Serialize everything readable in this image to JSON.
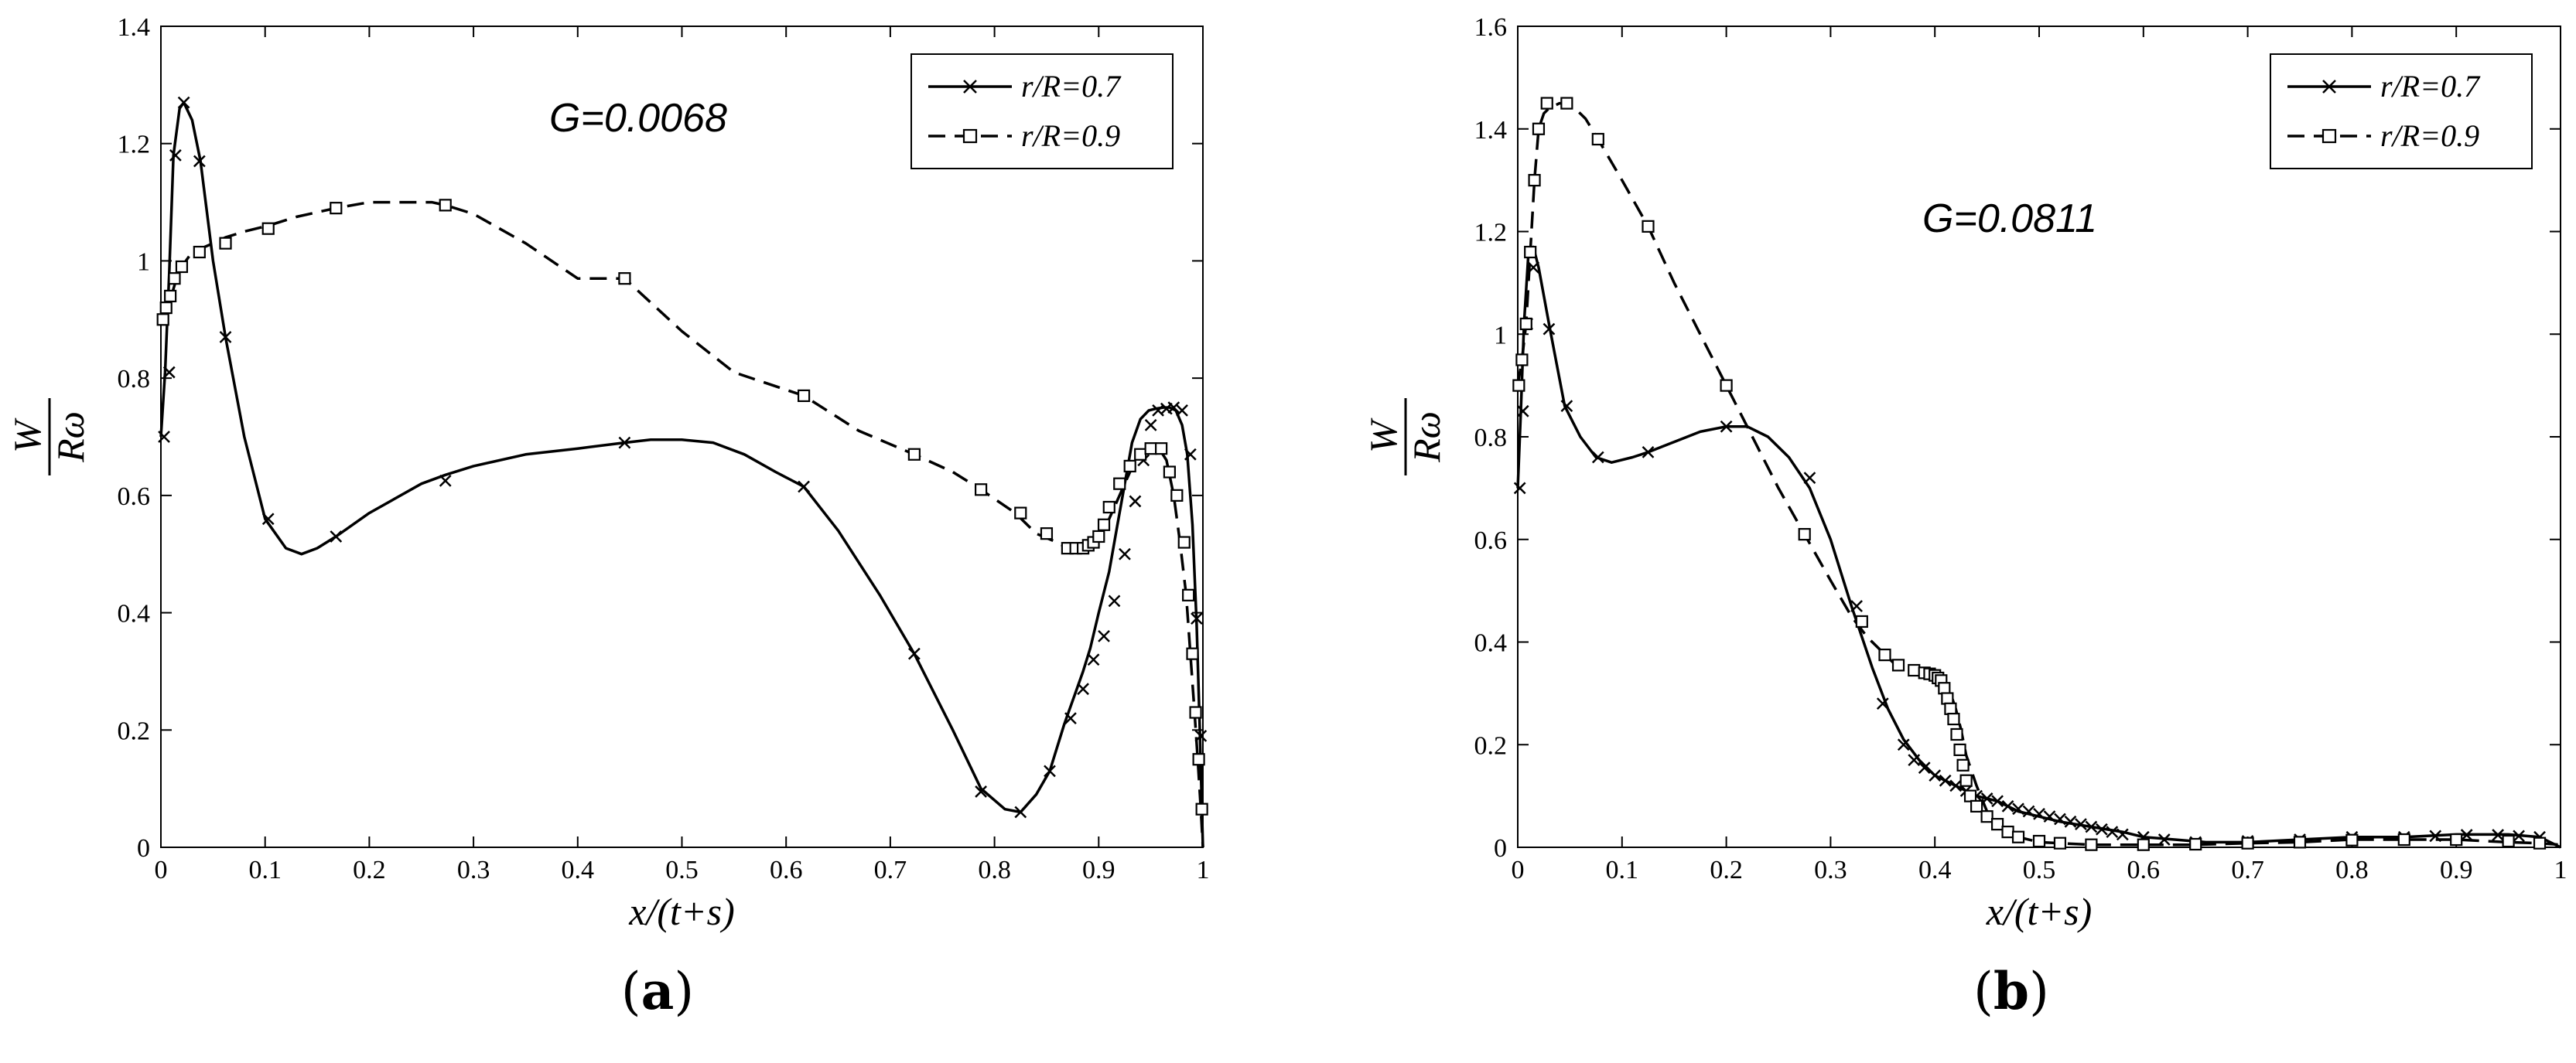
{
  "chart_data": [
    {
      "type": "line",
      "panel_label": "a",
      "annotation": "G=0.0068",
      "xlabel": "x/(t+s)",
      "ylabel_num": "W",
      "ylabel_den": "Rω",
      "xlim": [
        0,
        1
      ],
      "ylim": [
        0,
        1.4
      ],
      "xticks": [
        "0",
        "0.1",
        "0.2",
        "0.3",
        "0.4",
        "0.5",
        "0.6",
        "0.7",
        "0.8",
        "0.9",
        "1"
      ],
      "yticks": [
        "0",
        "0.2",
        "0.4",
        "0.6",
        "0.8",
        "1",
        "1.2",
        "1.4"
      ],
      "grid": false,
      "legend_position": "top-right",
      "series": [
        {
          "name": "r/R=0.7",
          "style": "solid",
          "marker": "x",
          "x": [
            0,
            0.004,
            0.008,
            0.012,
            0.018,
            0.022,
            0.03,
            0.038,
            0.05,
            0.062,
            0.08,
            0.1,
            0.12,
            0.135,
            0.15,
            0.168,
            0.2,
            0.25,
            0.273,
            0.3,
            0.35,
            0.4,
            0.445,
            0.47,
            0.5,
            0.53,
            0.56,
            0.59,
            0.617,
            0.65,
            0.69,
            0.723,
            0.76,
            0.787,
            0.81,
            0.825,
            0.84,
            0.853,
            0.867,
            0.877,
            0.885,
            0.892,
            0.9,
            0.91,
            0.918,
            0.925,
            0.932,
            0.94,
            0.948,
            0.955,
            0.962,
            0.968,
            0.974,
            0.98,
            0.985,
            0.99,
            0.994,
            0.997,
            1.0
          ],
          "y": [
            0.7,
            0.81,
            0.98,
            1.18,
            1.26,
            1.27,
            1.24,
            1.17,
            1.0,
            0.87,
            0.7,
            0.56,
            0.51,
            0.5,
            0.51,
            0.53,
            0.57,
            0.62,
            0.635,
            0.65,
            0.67,
            0.68,
            0.69,
            0.695,
            0.695,
            0.69,
            0.67,
            0.64,
            0.615,
            0.54,
            0.43,
            0.33,
            0.2,
            0.1,
            0.065,
            0.06,
            0.09,
            0.13,
            0.21,
            0.26,
            0.3,
            0.34,
            0.4,
            0.47,
            0.55,
            0.62,
            0.69,
            0.73,
            0.745,
            0.748,
            0.75,
            0.75,
            0.745,
            0.72,
            0.67,
            0.55,
            0.38,
            0.2,
            0.0
          ],
          "markers_x": [
            0.003,
            0.008,
            0.014,
            0.022,
            0.037,
            0.062,
            0.103,
            0.168,
            0.273,
            0.445,
            0.617,
            0.723,
            0.787,
            0.825,
            0.853,
            0.873,
            0.885,
            0.895,
            0.905,
            0.915,
            0.925,
            0.935,
            0.943,
            0.95,
            0.957,
            0.965,
            0.972,
            0.98,
            0.988,
            0.994,
            0.998
          ],
          "markers_y": [
            0.7,
            0.81,
            1.18,
            1.27,
            1.17,
            0.87,
            0.56,
            0.53,
            0.625,
            0.69,
            0.615,
            0.33,
            0.095,
            0.06,
            0.13,
            0.22,
            0.27,
            0.32,
            0.36,
            0.42,
            0.5,
            0.59,
            0.66,
            0.72,
            0.745,
            0.748,
            0.75,
            0.745,
            0.67,
            0.39,
            0.19
          ]
        },
        {
          "name": "r/R=0.9",
          "style": "dashed",
          "marker": "square",
          "x": [
            0,
            0.005,
            0.01,
            0.015,
            0.02,
            0.028,
            0.037,
            0.05,
            0.062,
            0.08,
            0.103,
            0.13,
            0.168,
            0.2,
            0.23,
            0.26,
            0.273,
            0.3,
            0.35,
            0.4,
            0.445,
            0.5,
            0.55,
            0.617,
            0.67,
            0.723,
            0.76,
            0.787,
            0.82,
            0.84,
            0.86,
            0.87,
            0.88,
            0.89,
            0.9,
            0.91,
            0.92,
            0.93,
            0.94,
            0.95,
            0.958,
            0.965,
            0.972,
            0.978,
            0.984,
            0.988,
            0.992,
            0.995,
            0.998,
            1.0
          ],
          "y": [
            0.9,
            0.92,
            0.94,
            0.97,
            0.99,
            1.01,
            1.02,
            1.03,
            1.04,
            1.05,
            1.06,
            1.075,
            1.09,
            1.1,
            1.1,
            1.1,
            1.095,
            1.08,
            1.03,
            0.97,
            0.97,
            0.88,
            0.81,
            0.77,
            0.71,
            0.67,
            0.64,
            0.61,
            0.57,
            0.535,
            0.52,
            0.51,
            0.51,
            0.515,
            0.53,
            0.56,
            0.6,
            0.64,
            0.67,
            0.68,
            0.68,
            0.66,
            0.6,
            0.52,
            0.43,
            0.33,
            0.23,
            0.15,
            0.065,
            0.0
          ],
          "markers_x": [
            0.002,
            0.005,
            0.009,
            0.013,
            0.02,
            0.037,
            0.062,
            0.103,
            0.168,
            0.273,
            0.445,
            0.617,
            0.723,
            0.787,
            0.825,
            0.85,
            0.87,
            0.878,
            0.885,
            0.89,
            0.895,
            0.9,
            0.905,
            0.91,
            0.92,
            0.93,
            0.94,
            0.95,
            0.96,
            0.968,
            0.975,
            0.982,
            0.986,
            0.99,
            0.993,
            0.996,
            0.999
          ],
          "markers_y": [
            0.9,
            0.92,
            0.94,
            0.97,
            0.99,
            1.015,
            1.03,
            1.055,
            1.09,
            1.095,
            0.97,
            0.77,
            0.67,
            0.61,
            0.57,
            0.535,
            0.51,
            0.51,
            0.51,
            0.515,
            0.52,
            0.53,
            0.55,
            0.58,
            0.62,
            0.65,
            0.67,
            0.68,
            0.68,
            0.64,
            0.6,
            0.52,
            0.43,
            0.33,
            0.23,
            0.15,
            0.065
          ]
        }
      ]
    },
    {
      "type": "line",
      "panel_label": "b",
      "annotation": "G=0.0811",
      "xlabel": "x/(t+s)",
      "ylabel_num": "W",
      "ylabel_den": "Rω",
      "xlim": [
        0,
        1
      ],
      "ylim": [
        0,
        1.6
      ],
      "xticks": [
        "0",
        "0.1",
        "0.2",
        "0.3",
        "0.4",
        "0.5",
        "0.6",
        "0.7",
        "0.8",
        "0.9",
        "1"
      ],
      "yticks": [
        "0",
        "0.2",
        "0.4",
        "0.6",
        "0.8",
        "1",
        "1.2",
        "1.4",
        "1.6"
      ],
      "grid": false,
      "legend_position": "top-right",
      "series": [
        {
          "name": "r/R=0.7",
          "style": "solid",
          "marker": "x",
          "x": [
            0,
            0.003,
            0.006,
            0.01,
            0.015,
            0.02,
            0.03,
            0.045,
            0.06,
            0.075,
            0.09,
            0.11,
            0.125,
            0.15,
            0.175,
            0.2,
            0.22,
            0.24,
            0.26,
            0.28,
            0.3,
            0.32,
            0.34,
            0.355,
            0.37,
            0.385,
            0.4,
            0.42,
            0.44,
            0.46,
            0.48,
            0.5,
            0.52,
            0.55,
            0.58,
            0.6,
            0.63,
            0.66,
            0.7,
            0.75,
            0.8,
            0.85,
            0.9,
            0.95,
            0.98,
            1.0
          ],
          "y": [
            0.7,
            0.85,
            1.02,
            1.15,
            1.17,
            1.13,
            1.02,
            0.86,
            0.8,
            0.76,
            0.75,
            0.76,
            0.77,
            0.79,
            0.81,
            0.82,
            0.82,
            0.8,
            0.76,
            0.7,
            0.6,
            0.47,
            0.35,
            0.27,
            0.21,
            0.17,
            0.14,
            0.12,
            0.1,
            0.09,
            0.07,
            0.06,
            0.05,
            0.04,
            0.03,
            0.02,
            0.015,
            0.01,
            0.01,
            0.015,
            0.02,
            0.02,
            0.025,
            0.025,
            0.02,
            0.0
          ],
          "markers_x": [
            0.002,
            0.005,
            0.009,
            0.015,
            0.03,
            0.047,
            0.077,
            0.125,
            0.2,
            0.28,
            0.325,
            0.35,
            0.37,
            0.38,
            0.39,
            0.4,
            0.41,
            0.42,
            0.43,
            0.44,
            0.45,
            0.46,
            0.47,
            0.48,
            0.49,
            0.5,
            0.51,
            0.52,
            0.53,
            0.54,
            0.55,
            0.56,
            0.57,
            0.58,
            0.6,
            0.62,
            0.65,
            0.7,
            0.75,
            0.8,
            0.85,
            0.88,
            0.91,
            0.94,
            0.96,
            0.98
          ],
          "markers_y": [
            0.7,
            0.85,
            1.02,
            1.13,
            1.01,
            0.86,
            0.76,
            0.77,
            0.82,
            0.72,
            0.47,
            0.28,
            0.2,
            0.17,
            0.155,
            0.14,
            0.13,
            0.12,
            0.11,
            0.1,
            0.095,
            0.09,
            0.08,
            0.075,
            0.07,
            0.065,
            0.06,
            0.055,
            0.05,
            0.045,
            0.04,
            0.035,
            0.03,
            0.025,
            0.02,
            0.015,
            0.01,
            0.012,
            0.015,
            0.02,
            0.02,
            0.022,
            0.024,
            0.024,
            0.022,
            0.02
          ]
        },
        {
          "name": "r/R=0.9",
          "style": "dashed",
          "marker": "square",
          "x": [
            0,
            0.004,
            0.008,
            0.012,
            0.016,
            0.02,
            0.025,
            0.03,
            0.04,
            0.047,
            0.055,
            0.065,
            0.077,
            0.1,
            0.125,
            0.15,
            0.175,
            0.2,
            0.225,
            0.25,
            0.275,
            0.3,
            0.32,
            0.335,
            0.35,
            0.36,
            0.37,
            0.38,
            0.39,
            0.4,
            0.405,
            0.41,
            0.415,
            0.42,
            0.425,
            0.43,
            0.44,
            0.45,
            0.46,
            0.48,
            0.5,
            0.55,
            0.6,
            0.65,
            0.7,
            0.75,
            0.8,
            0.85,
            0.9,
            0.95,
            0.98,
            1.0
          ],
          "y": [
            0.9,
            0.95,
            1.02,
            1.16,
            1.3,
            1.4,
            1.43,
            1.44,
            1.45,
            1.45,
            1.44,
            1.42,
            1.38,
            1.3,
            1.21,
            1.1,
            1.0,
            0.9,
            0.8,
            0.7,
            0.61,
            0.52,
            0.45,
            0.41,
            0.38,
            0.36,
            0.35,
            0.345,
            0.34,
            0.335,
            0.33,
            0.32,
            0.3,
            0.27,
            0.23,
            0.18,
            0.12,
            0.07,
            0.04,
            0.02,
            0.01,
            0.005,
            0.005,
            0.005,
            0.008,
            0.01,
            0.015,
            0.015,
            0.015,
            0.01,
            0.008,
            0.005
          ],
          "markers_x": [
            0.001,
            0.004,
            0.008,
            0.012,
            0.016,
            0.02,
            0.028,
            0.047,
            0.077,
            0.125,
            0.2,
            0.275,
            0.33,
            0.352,
            0.365,
            0.38,
            0.39,
            0.395,
            0.4,
            0.403,
            0.406,
            0.409,
            0.412,
            0.415,
            0.418,
            0.421,
            0.424,
            0.427,
            0.43,
            0.434,
            0.44,
            0.45,
            0.46,
            0.47,
            0.48,
            0.5,
            0.52,
            0.55,
            0.6,
            0.65,
            0.7,
            0.75,
            0.8,
            0.85,
            0.9,
            0.95,
            0.98
          ],
          "markers_y": [
            0.9,
            0.95,
            1.02,
            1.16,
            1.3,
            1.4,
            1.45,
            1.45,
            1.38,
            1.21,
            0.9,
            0.61,
            0.44,
            0.375,
            0.355,
            0.345,
            0.34,
            0.338,
            0.335,
            0.33,
            0.325,
            0.31,
            0.29,
            0.27,
            0.25,
            0.22,
            0.19,
            0.16,
            0.13,
            0.1,
            0.08,
            0.06,
            0.045,
            0.03,
            0.02,
            0.012,
            0.008,
            0.005,
            0.005,
            0.006,
            0.008,
            0.01,
            0.014,
            0.015,
            0.015,
            0.012,
            0.008
          ]
        }
      ]
    }
  ]
}
